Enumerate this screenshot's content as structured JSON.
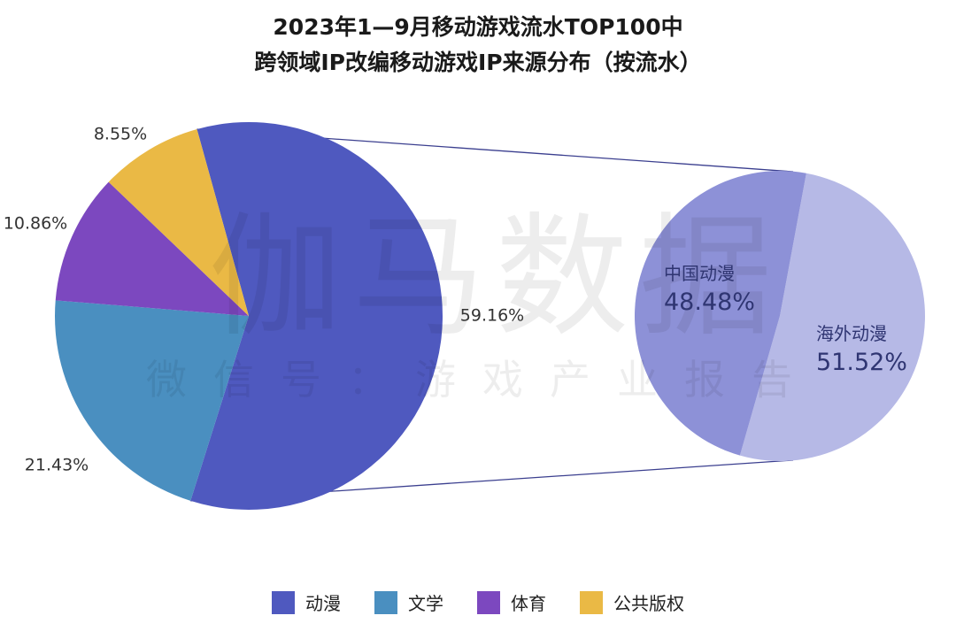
{
  "title": {
    "line1": "2023年1—9月移动游戏流水TOP100中",
    "line2": "跨领域IP改编移动游戏IP来源分布（按流水）"
  },
  "watermark": {
    "main": "伽马数据",
    "sub": "微信号：游戏产业报告"
  },
  "colors": {
    "anime": "#4f59bf",
    "literature": "#4a8fc0",
    "sports": "#7c48bf",
    "public": "#eab945",
    "domestic": "#8d91d7",
    "overseas": "#b6b9e6",
    "connector": "#3b3f8f"
  },
  "chart_data": [
    {
      "type": "pie",
      "categories": [
        "动漫",
        "文学",
        "体育",
        "公共版权"
      ],
      "values": [
        59.16,
        21.43,
        10.86,
        8.55
      ],
      "labels": [
        "59.16%",
        "21.43%",
        "10.86%",
        "8.55%"
      ]
    },
    {
      "type": "pie",
      "parent_category": "动漫",
      "categories": [
        "中国动漫",
        "海外动漫"
      ],
      "values": [
        48.48,
        51.52
      ],
      "labels": [
        "48.48%",
        "51.52%"
      ]
    }
  ],
  "legend": [
    {
      "label": "动漫",
      "color": "#4f59bf"
    },
    {
      "label": "文学",
      "color": "#4a8fc0"
    },
    {
      "label": "体育",
      "color": "#7c48bf"
    },
    {
      "label": "公共版权",
      "color": "#eab945"
    }
  ]
}
